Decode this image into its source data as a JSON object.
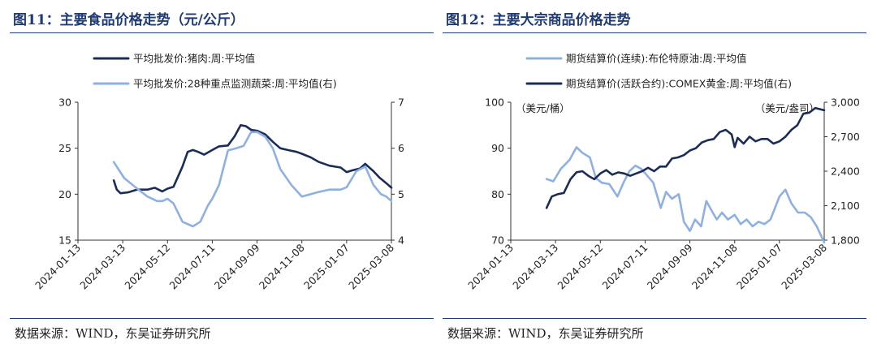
{
  "colors": {
    "dark": "#1b2d57",
    "light": "#8fb0e3",
    "accent": "#1f3b75"
  },
  "charts": [
    {
      "title": "图11：主要食品价格走势（元/公斤）",
      "source": "数据来源：WIND，东吴证券研究所",
      "units": {
        "left": "",
        "right": ""
      },
      "chart_data": {
        "type": "line",
        "x_ticks": [
          "2024-01-13",
          "2024-03-13",
          "2024-05-12",
          "2024-07-11",
          "2024-09-09",
          "2024-11-08",
          "2025-01-07",
          "2025-03-08"
        ],
        "x_range": [
          "2024-01-13",
          "2025-03-08"
        ],
        "y_left": {
          "range": [
            15,
            30
          ],
          "ticks": [
            "15",
            "20",
            "25",
            "30"
          ]
        },
        "y_right": {
          "range": [
            4,
            7
          ],
          "ticks": [
            "4",
            "5",
            "6",
            "7"
          ]
        },
        "series": [
          {
            "name": "平均批发价:猪肉:周:平均值",
            "axis": "left",
            "color": "dark",
            "x": [
              "2024-03-01",
              "2024-03-05",
              "2024-03-10",
              "2024-03-20",
              "2024-04-01",
              "2024-04-15",
              "2024-04-25",
              "2024-05-05",
              "2024-05-12",
              "2024-05-20",
              "2024-06-01",
              "2024-06-08",
              "2024-06-15",
              "2024-06-22",
              "2024-06-30",
              "2024-07-11",
              "2024-07-20",
              "2024-08-01",
              "2024-08-10",
              "2024-08-18",
              "2024-08-25",
              "2024-09-01",
              "2024-09-09",
              "2024-09-20",
              "2024-09-30",
              "2024-10-10",
              "2024-10-20",
              "2024-11-01",
              "2024-11-08",
              "2024-11-20",
              "2024-12-01",
              "2024-12-15",
              "2024-12-30",
              "2025-01-07",
              "2025-01-15",
              "2025-01-25",
              "2025-02-01",
              "2025-02-05",
              "2025-02-12",
              "2025-02-20",
              "2025-03-01",
              "2025-03-08"
            ],
            "y": [
              21.5,
              20.5,
              20.1,
              20.2,
              20.5,
              20.5,
              20.7,
              20.3,
              20.6,
              20.8,
              23.0,
              24.6,
              24.8,
              24.6,
              24.3,
              24.8,
              25.2,
              25.3,
              26.3,
              27.5,
              27.4,
              27.0,
              26.9,
              26.5,
              25.7,
              25.0,
              24.8,
              24.6,
              24.4,
              24.0,
              23.5,
              23.1,
              22.9,
              22.4,
              22.6,
              22.8,
              23.3,
              23.0,
              22.5,
              21.8,
              21.2,
              20.7
            ]
          },
          {
            "name": "平均批发价:28种重点监测蔬菜:周:平均值(右)",
            "axis": "right",
            "color": "light",
            "x": [
              "2024-03-01",
              "2024-03-15",
              "2024-03-30",
              "2024-04-15",
              "2024-04-28",
              "2024-05-05",
              "2024-05-12",
              "2024-05-20",
              "2024-06-01",
              "2024-06-15",
              "2024-06-25",
              "2024-07-05",
              "2024-07-11",
              "2024-07-20",
              "2024-08-01",
              "2024-08-12",
              "2024-08-22",
              "2024-09-01",
              "2024-09-09",
              "2024-09-20",
              "2024-09-30",
              "2024-10-10",
              "2024-10-25",
              "2024-11-08",
              "2024-11-20",
              "2024-12-01",
              "2024-12-15",
              "2024-12-30",
              "2025-01-07",
              "2025-01-20",
              "2025-02-01",
              "2025-02-12",
              "2025-02-22",
              "2025-03-01",
              "2025-03-08"
            ],
            "y": [
              5.7,
              5.35,
              5.15,
              4.95,
              4.85,
              4.85,
              4.9,
              4.8,
              4.4,
              4.3,
              4.4,
              4.75,
              4.9,
              5.2,
              5.95,
              6.0,
              6.05,
              6.35,
              6.35,
              6.25,
              6.0,
              5.55,
              5.2,
              4.95,
              5.0,
              5.05,
              5.1,
              5.1,
              5.15,
              5.5,
              5.6,
              5.2,
              5.0,
              4.95,
              4.85
            ]
          }
        ]
      }
    },
    {
      "title": "图12：主要大宗商品价格走势",
      "source": "数据来源：WIND，东吴证券研究所",
      "units": {
        "left": "（美元/桶）",
        "right": "（美元/盎司）"
      },
      "chart_data": {
        "type": "line",
        "x_ticks": [
          "2024-01-13",
          "2024-03-13",
          "2024-05-12",
          "2024-07-11",
          "2024-09-09",
          "2024-11-08",
          "2025-01-07",
          "2025-03-08"
        ],
        "x_range": [
          "2024-01-13",
          "2025-03-08"
        ],
        "y_left": {
          "range": [
            70,
            100
          ],
          "ticks": [
            "70",
            "80",
            "90",
            "100"
          ]
        },
        "y_right": {
          "range": [
            1800,
            3000
          ],
          "ticks": [
            "1,800",
            "2,100",
            "2,400",
            "2,700",
            "3,000"
          ]
        },
        "series": [
          {
            "name": "期货结算价(连续):布伦特原油:周:平均值",
            "axis": "left",
            "color": "light",
            "x": [
              "2024-03-01",
              "2024-03-10",
              "2024-03-20",
              "2024-04-01",
              "2024-04-10",
              "2024-04-18",
              "2024-04-28",
              "2024-05-06",
              "2024-05-14",
              "2024-05-24",
              "2024-06-04",
              "2024-06-12",
              "2024-06-20",
              "2024-06-28",
              "2024-07-06",
              "2024-07-14",
              "2024-07-22",
              "2024-08-01",
              "2024-08-08",
              "2024-08-16",
              "2024-08-25",
              "2024-09-01",
              "2024-09-09",
              "2024-09-16",
              "2024-09-24",
              "2024-10-01",
              "2024-10-08",
              "2024-10-15",
              "2024-10-22",
              "2024-10-30",
              "2024-11-08",
              "2024-11-16",
              "2024-11-24",
              "2024-12-02",
              "2024-12-10",
              "2024-12-18",
              "2024-12-26",
              "2025-01-07",
              "2025-01-15",
              "2025-01-23",
              "2025-02-01",
              "2025-02-10",
              "2025-02-18",
              "2025-02-26",
              "2025-03-08"
            ],
            "y": [
              83.3,
              82.8,
              85.5,
              87.5,
              90.2,
              89.0,
              88.0,
              83.5,
              82.5,
              82.2,
              79.5,
              82.5,
              85.0,
              86.2,
              85.5,
              84.0,
              82.5,
              77.0,
              80.5,
              79.0,
              80.0,
              74.0,
              72.0,
              74.5,
              73.0,
              78.5,
              76.5,
              74.5,
              76.0,
              74.5,
              75.5,
              73.5,
              74.5,
              73.0,
              74.0,
              73.5,
              74.5,
              79.5,
              81.0,
              78.0,
              76.0,
              76.0,
              75.0,
              73.0,
              69.5
            ]
          },
          {
            "name": "期货结算价(活跃合约):COMEX黄金:周:平均值(右)",
            "axis": "right",
            "color": "dark",
            "x": [
              "2024-03-01",
              "2024-03-08",
              "2024-03-16",
              "2024-03-24",
              "2024-04-02",
              "2024-04-10",
              "2024-04-18",
              "2024-04-26",
              "2024-05-04",
              "2024-05-12",
              "2024-05-20",
              "2024-05-28",
              "2024-06-05",
              "2024-06-13",
              "2024-06-21",
              "2024-06-29",
              "2024-07-07",
              "2024-07-15",
              "2024-07-23",
              "2024-07-31",
              "2024-08-08",
              "2024-08-16",
              "2024-08-24",
              "2024-09-01",
              "2024-09-09",
              "2024-09-17",
              "2024-09-25",
              "2024-10-03",
              "2024-10-11",
              "2024-10-19",
              "2024-10-27",
              "2024-11-04",
              "2024-11-08",
              "2024-11-12",
              "2024-11-20",
              "2024-11-28",
              "2024-12-06",
              "2024-12-14",
              "2024-12-22",
              "2024-12-30",
              "2025-01-07",
              "2025-01-15",
              "2025-01-23",
              "2025-01-31",
              "2025-02-08",
              "2025-02-16",
              "2025-02-24",
              "2025-03-02",
              "2025-03-08"
            ],
            "y": [
              2080,
              2180,
              2200,
              2210,
              2330,
              2390,
              2400,
              2360,
              2330,
              2380,
              2410,
              2370,
              2390,
              2380,
              2360,
              2380,
              2400,
              2430,
              2400,
              2440,
              2440,
              2510,
              2520,
              2540,
              2580,
              2600,
              2650,
              2670,
              2680,
              2740,
              2760,
              2720,
              2610,
              2690,
              2640,
              2700,
              2660,
              2680,
              2680,
              2640,
              2660,
              2700,
              2760,
              2800,
              2900,
              2910,
              2950,
              2940,
              2930
            ]
          }
        ]
      }
    }
  ]
}
